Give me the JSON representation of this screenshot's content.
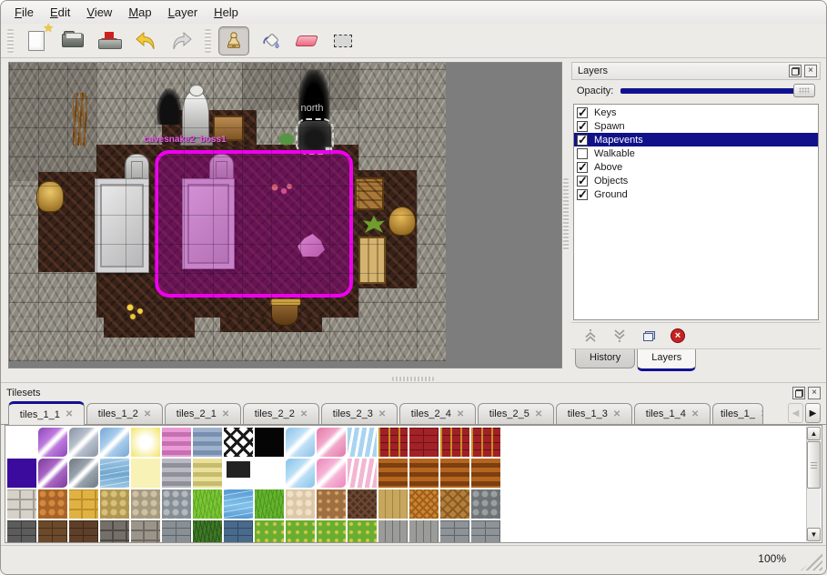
{
  "menu": {
    "items": [
      "File",
      "Edit",
      "View",
      "Map",
      "Layer",
      "Help"
    ]
  },
  "toolbar": {
    "groups": [
      [
        {
          "name": "new-map",
          "icon": "new-file"
        },
        {
          "name": "open-map",
          "icon": "open-folder"
        },
        {
          "name": "save-map",
          "icon": "save"
        },
        {
          "name": "undo",
          "icon": "undo-arrow"
        },
        {
          "name": "redo",
          "icon": "redo-arrow"
        }
      ],
      [
        {
          "name": "stamp-tool",
          "icon": "stamp",
          "selected": true
        },
        {
          "name": "fill-tool",
          "icon": "fill-bucket"
        },
        {
          "name": "eraser-tool",
          "icon": "eraser"
        },
        {
          "name": "select-tool",
          "icon": "rect-select"
        }
      ]
    ]
  },
  "map": {
    "labels": {
      "north": "north",
      "boss": "cavesnake2_boss1"
    }
  },
  "layers_panel": {
    "title": "Layers",
    "opacity_label": "Opacity:",
    "opacity_percent": 100,
    "layers": [
      {
        "label": "Keys",
        "checked": true,
        "selected": false
      },
      {
        "label": "Spawn",
        "checked": true,
        "selected": false
      },
      {
        "label": "Mapevents",
        "checked": true,
        "selected": true
      },
      {
        "label": "Walkable",
        "checked": false,
        "selected": false
      },
      {
        "label": "Above",
        "checked": true,
        "selected": false
      },
      {
        "label": "Objects",
        "checked": true,
        "selected": false
      },
      {
        "label": "Ground",
        "checked": true,
        "selected": false
      }
    ],
    "tabs": [
      {
        "label": "History",
        "active": false
      },
      {
        "label": "Layers",
        "active": true
      }
    ]
  },
  "tilesets_panel": {
    "title": "Tilesets",
    "tabs": [
      {
        "label": "tiles_1_1",
        "active": true
      },
      {
        "label": "tiles_1_2",
        "active": false
      },
      {
        "label": "tiles_2_1",
        "active": false
      },
      {
        "label": "tiles_2_2",
        "active": false
      },
      {
        "label": "tiles_2_3",
        "active": false
      },
      {
        "label": "tiles_2_4",
        "active": false
      },
      {
        "label": "tiles_2_5",
        "active": false
      },
      {
        "label": "tiles_1_3",
        "active": false
      },
      {
        "label": "tiles_1_4",
        "active": false
      },
      {
        "label": "tiles_1_",
        "active": false,
        "truncated": true
      }
    ],
    "palette": {
      "tile_size": 32,
      "rows": [
        [
          [
            "solid",
            "#ffffff",
            ""
          ],
          [
            "crystal",
            "#c07ade",
            "#8a48b8"
          ],
          [
            "crystal",
            "#b6bfcc",
            "#8893a4"
          ],
          [
            "crystal",
            "#a9cdec",
            "#79a6d4"
          ],
          [
            "glow",
            "#f3e87c",
            ""
          ],
          [
            "hstripes",
            "#ea9ad6",
            "#c670b2"
          ],
          [
            "hstripes",
            "#9fb2cc",
            "#7890b0"
          ],
          [
            "lattice",
            "#ffffff",
            "#1a1a1a"
          ],
          [
            "solid",
            "#050505",
            ""
          ],
          [
            "crystal",
            "#bfe0f6",
            "#8cc0e6"
          ],
          [
            "crystal",
            "#f2a9ca",
            "#e279a9"
          ],
          [
            "torn",
            "#a9d4f0",
            "#ffffff"
          ],
          [
            "brickgold",
            "#a02026",
            "#c89020"
          ],
          [
            "brick",
            "#a22227",
            "#701318"
          ],
          [
            "brickgold",
            "#a02026",
            "#c89020"
          ],
          [
            "brickgold",
            "#a02026",
            "#c89020"
          ]
        ],
        [
          [
            "solid",
            "#3a0b9c",
            ""
          ],
          [
            "crystal",
            "#aa66c4",
            "#7a3c9a"
          ],
          [
            "crystal",
            "#99a3ad",
            "#6e7984"
          ],
          [
            "water",
            "#9cc6e6",
            "#6fa6ce"
          ],
          [
            "solid",
            "#f8f2b6",
            ""
          ],
          [
            "hstripes",
            "#b9b9c2",
            "#90909a"
          ],
          [
            "hstripes",
            "#eae09a",
            "#c6bc6e"
          ],
          [
            "plaque",
            "#222222",
            "#ffffff"
          ],
          [
            "solid",
            "#ffffff",
            ""
          ],
          [
            "crystal",
            "#badff6",
            "#88c2e8"
          ],
          [
            "crystal",
            "#f6b4d6",
            "#ec86bc"
          ],
          [
            "torn",
            "#f2b6d2",
            "#ffffff"
          ],
          [
            "hstripes",
            "#b5651e",
            "#7c3f10"
          ],
          [
            "hstripes",
            "#b5651e",
            "#7c3f10"
          ],
          [
            "hstripes",
            "#b5651e",
            "#7c3f10"
          ],
          [
            "hstripes",
            "#b5651e",
            "#7c3f10"
          ]
        ],
        [
          [
            "stone",
            "#d6d2ca",
            "#a29e96"
          ],
          [
            "cobble",
            "#d4893f",
            "#a86328"
          ],
          [
            "stone",
            "#dfb243",
            "#bd9129"
          ],
          [
            "cobble",
            "#d7c178",
            "#b09752"
          ],
          [
            "cobble",
            "#cdc2a6",
            "#a79a7e"
          ],
          [
            "cobble",
            "#b4bac0",
            "#868e95"
          ],
          [
            "grass",
            "#7cc634",
            "#5ea626"
          ],
          [
            "water",
            "#5598d4",
            "#82c2ea"
          ],
          [
            "grass",
            "#66b42e",
            "#4c961e"
          ],
          [
            "cobble",
            "#f0e0c6",
            "#dcc8a8"
          ],
          [
            "dots",
            "#a06f41",
            "#d2a468"
          ],
          [
            "weave",
            "#4c3122",
            "#6c4832"
          ],
          [
            "planks",
            "#c7a75e",
            "#a5853e"
          ],
          [
            "weave",
            "#cd8630",
            "#a05f1c"
          ],
          [
            "herring",
            "#b37f3a",
            "#885a22"
          ],
          [
            "cobble",
            "#9aa0a2",
            "#6e7476"
          ]
        ],
        [
          [
            "brick",
            "#5c5c5c",
            "#3a3a3a"
          ],
          [
            "brick",
            "#6b4a2b",
            "#49301a"
          ],
          [
            "brick",
            "#5e402a",
            "#3f2914"
          ],
          [
            "stone",
            "#746f69",
            "#4e4943"
          ],
          [
            "stone",
            "#9a948b",
            "#6e6961"
          ],
          [
            "brick",
            "#899095",
            "#5e6468"
          ],
          [
            "grass",
            "#3e7a28",
            "#2a5618"
          ],
          [
            "brick",
            "#4a6a8b",
            "#2f4a66"
          ],
          [
            "dots",
            "#68ae30",
            "#d6c64c"
          ],
          [
            "dots",
            "#68ae30",
            "#d6c64c"
          ],
          [
            "dots",
            "#68ae30",
            "#d6c64c"
          ],
          [
            "dots",
            "#68ae30",
            "#d6c64c"
          ],
          [
            "planks",
            "#9b9b99",
            "#6f6f6d"
          ],
          [
            "planks",
            "#9b9b99",
            "#6f6f6d"
          ],
          [
            "brick",
            "#8e9398",
            "#60656a"
          ],
          [
            "brick",
            "#8e9398",
            "#60656a"
          ]
        ]
      ]
    }
  },
  "statusbar": {
    "zoom_level": "100%"
  },
  "colors": {
    "accent_navy": "#101190",
    "selection_magenta": "#ee00ee",
    "canvas_gray": "#7d7d7d",
    "chrome": "#eceae7"
  }
}
